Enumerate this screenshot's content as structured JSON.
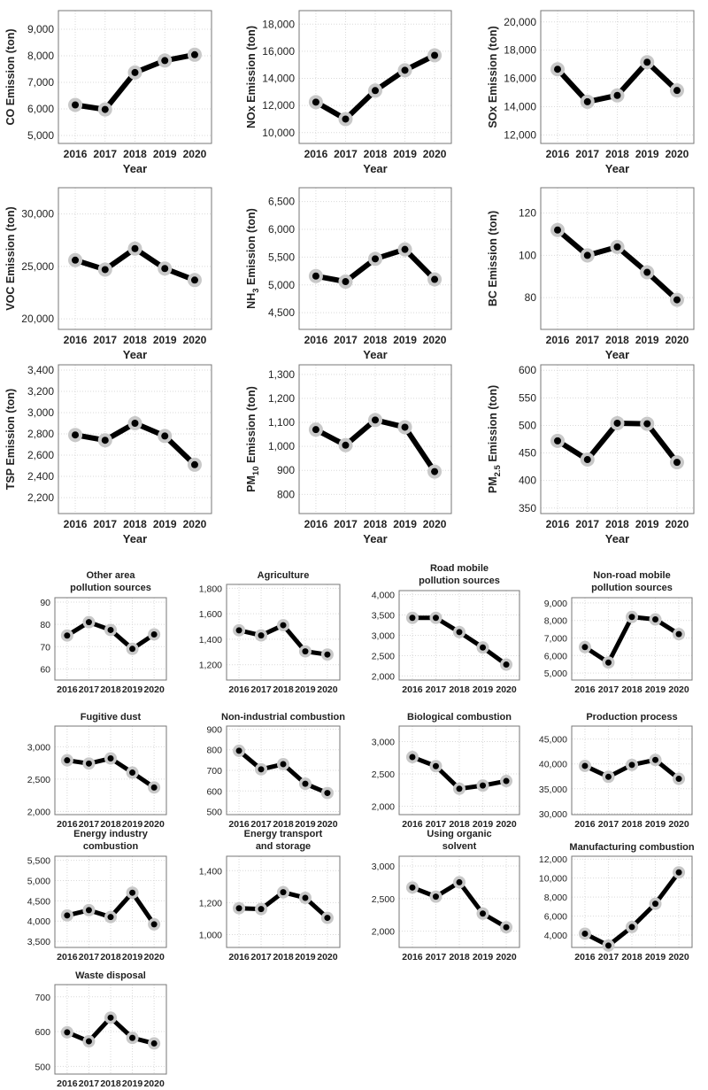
{
  "style": {
    "line_color": "#000000",
    "point_fill": "#000000",
    "halo_color": "#c8c8c8",
    "axis_color": "#777777",
    "grid_color": "#d9d9d9",
    "text_color": "#222222"
  },
  "chart_data": [
    {
      "type": "line",
      "group": "pollutant",
      "ylabel": "CO Emission (ton)",
      "xlabel": "Year",
      "categories": [
        "2016",
        "2017",
        "2018",
        "2019",
        "2020"
      ],
      "values": [
        6150,
        5980,
        7370,
        7820,
        8040
      ],
      "ylim": [
        4700,
        9700
      ],
      "yticks": [
        5000,
        6000,
        7000,
        8000,
        9000
      ],
      "ytick_labels": [
        "5,000",
        "6,000",
        "7,000",
        "8,000",
        "9,000"
      ]
    },
    {
      "type": "line",
      "group": "pollutant",
      "ylabel": "NOx Emission (ton)",
      "xlabel": "Year",
      "categories": [
        "2016",
        "2017",
        "2018",
        "2019",
        "2020"
      ],
      "values": [
        12250,
        11000,
        13100,
        14600,
        15700
      ],
      "ylim": [
        9200,
        19000
      ],
      "yticks": [
        10000,
        12000,
        14000,
        16000,
        18000
      ],
      "ytick_labels": [
        "10,000",
        "12,000",
        "14,000",
        "16,000",
        "18,000"
      ]
    },
    {
      "type": "line",
      "group": "pollutant",
      "ylabel": "SOx Emission (ton)",
      "xlabel": "Year",
      "categories": [
        "2016",
        "2017",
        "2018",
        "2019",
        "2020"
      ],
      "values": [
        16650,
        14350,
        14800,
        17150,
        15150
      ],
      "ylim": [
        11400,
        20800
      ],
      "yticks": [
        12000,
        14000,
        16000,
        18000,
        20000
      ],
      "ytick_labels": [
        "12,000",
        "14,000",
        "16,000",
        "18,000",
        "20,000"
      ]
    },
    {
      "type": "line",
      "group": "pollutant",
      "ylabel": "VOC Emission (ton)",
      "xlabel": "Year",
      "categories": [
        "2016",
        "2017",
        "2018",
        "2019",
        "2020"
      ],
      "values": [
        25600,
        24700,
        26700,
        24800,
        23700
      ],
      "ylim": [
        19000,
        32500
      ],
      "yticks": [
        20000,
        25000,
        30000
      ],
      "ytick_labels": [
        "20,000",
        "25,000",
        "30,000"
      ]
    },
    {
      "type": "line",
      "group": "pollutant",
      "ylabel_parts": [
        "NH",
        "3",
        " Emission (ton)"
      ],
      "xlabel": "Year",
      "categories": [
        "2016",
        "2017",
        "2018",
        "2019",
        "2020"
      ],
      "values": [
        5160,
        5060,
        5470,
        5640,
        5100
      ],
      "ylim": [
        4200,
        6750
      ],
      "yticks": [
        4500,
        5000,
        5500,
        6000,
        6500
      ],
      "ytick_labels": [
        "4,500",
        "5,000",
        "5,500",
        "6,000",
        "6,500"
      ]
    },
    {
      "type": "line",
      "group": "pollutant",
      "ylabel": "BC Emission (ton)",
      "xlabel": "Year",
      "categories": [
        "2016",
        "2017",
        "2018",
        "2019",
        "2020"
      ],
      "values": [
        112,
        100,
        104,
        92,
        79
      ],
      "ylim": [
        65,
        132
      ],
      "yticks": [
        80,
        100,
        120
      ],
      "ytick_labels": [
        "80",
        "100",
        "120"
      ]
    },
    {
      "type": "line",
      "group": "pollutant",
      "ylabel": "TSP Emission (ton)",
      "xlabel": "Year",
      "categories": [
        "2016",
        "2017",
        "2018",
        "2019",
        "2020"
      ],
      "values": [
        2790,
        2740,
        2900,
        2780,
        2510
      ],
      "ylim": [
        2050,
        3450
      ],
      "yticks": [
        2200,
        2400,
        2600,
        2800,
        3000,
        3200,
        3400
      ],
      "ytick_labels": [
        "2,200",
        "2,400",
        "2,600",
        "2,800",
        "3,000",
        "3,200",
        "3,400"
      ]
    },
    {
      "type": "line",
      "group": "pollutant",
      "ylabel_parts": [
        "PM",
        "10",
        " Emission (ton)"
      ],
      "xlabel": "Year",
      "categories": [
        "2016",
        "2017",
        "2018",
        "2019",
        "2020"
      ],
      "values": [
        1070,
        1005,
        1110,
        1080,
        895
      ],
      "ylim": [
        720,
        1340
      ],
      "yticks": [
        800,
        900,
        1000,
        1100,
        1200,
        1300
      ],
      "ytick_labels": [
        "800",
        "900",
        "1,000",
        "1,100",
        "1,200",
        "1,300"
      ]
    },
    {
      "type": "line",
      "group": "pollutant",
      "ylabel_parts": [
        "PM",
        "2.5",
        " Emission (ton)"
      ],
      "xlabel": "Year",
      "categories": [
        "2016",
        "2017",
        "2018",
        "2019",
        "2020"
      ],
      "values": [
        472,
        438,
        504,
        503,
        433
      ],
      "ylim": [
        340,
        610
      ],
      "yticks": [
        350,
        400,
        450,
        500,
        550,
        600
      ],
      "ytick_labels": [
        "350",
        "400",
        "450",
        "500",
        "550",
        "600"
      ]
    },
    {
      "type": "line",
      "group": "sector",
      "title_lines": [
        "Other area",
        "pollution sources"
      ],
      "categories": [
        "2016",
        "2017",
        "2018",
        "2019",
        "2020"
      ],
      "values": [
        75,
        81,
        77.5,
        69,
        75.5
      ],
      "ylim": [
        55,
        92
      ],
      "yticks": [
        60,
        70,
        80,
        90
      ],
      "ytick_labels": [
        "60",
        "70",
        "80",
        "90"
      ]
    },
    {
      "type": "line",
      "group": "sector",
      "title_lines": [
        "Agriculture"
      ],
      "categories": [
        "2016",
        "2017",
        "2018",
        "2019",
        "2020"
      ],
      "values": [
        1470,
        1430,
        1510,
        1305,
        1280
      ],
      "ylim": [
        1080,
        1830
      ],
      "yticks": [
        1200,
        1400,
        1600,
        1800
      ],
      "ytick_labels": [
        "1,200",
        "1,400",
        "1,600",
        "1,800"
      ]
    },
    {
      "type": "line",
      "group": "sector",
      "title_lines": [
        "Road mobile",
        "pollution sources"
      ],
      "categories": [
        "2016",
        "2017",
        "2018",
        "2019",
        "2020"
      ],
      "values": [
        3430,
        3430,
        3080,
        2700,
        2280
      ],
      "ylim": [
        1900,
        4100
      ],
      "yticks": [
        2000,
        2500,
        3000,
        3500,
        4000
      ],
      "ytick_labels": [
        "2,000",
        "2,500",
        "3,000",
        "3,500",
        "4,000"
      ]
    },
    {
      "type": "line",
      "group": "sector",
      "title_lines": [
        "Non-road mobile",
        "pollution sources"
      ],
      "categories": [
        "2016",
        "2017",
        "2018",
        "2019",
        "2020"
      ],
      "values": [
        6480,
        5600,
        8200,
        8060,
        7220
      ],
      "ylim": [
        4600,
        9300
      ],
      "yticks": [
        5000,
        6000,
        7000,
        8000,
        9000
      ],
      "ytick_labels": [
        "5,000",
        "6,000",
        "7,000",
        "8,000",
        "9,000"
      ]
    },
    {
      "type": "line",
      "group": "sector",
      "title_lines": [
        "Fugitive dust"
      ],
      "categories": [
        "2016",
        "2017",
        "2018",
        "2019",
        "2020"
      ],
      "values": [
        2790,
        2740,
        2820,
        2600,
        2370
      ],
      "ylim": [
        1950,
        3320
      ],
      "yticks": [
        2000,
        2500,
        3000
      ],
      "ytick_labels": [
        "2,000",
        "2,500",
        "3,000"
      ]
    },
    {
      "type": "line",
      "group": "sector",
      "title_lines": [
        "Non-industrial combustion"
      ],
      "categories": [
        "2016",
        "2017",
        "2018",
        "2019",
        "2020"
      ],
      "values": [
        795,
        705,
        730,
        635,
        590
      ],
      "ylim": [
        485,
        915
      ],
      "yticks": [
        500,
        600,
        700,
        800,
        900
      ],
      "ytick_labels": [
        "500",
        "600",
        "700",
        "800",
        "900"
      ]
    },
    {
      "type": "line",
      "group": "sector",
      "title_lines": [
        "Biological combustion"
      ],
      "categories": [
        "2016",
        "2017",
        "2018",
        "2019",
        "2020"
      ],
      "values": [
        2760,
        2620,
        2270,
        2320,
        2390
      ],
      "ylim": [
        1870,
        3240
      ],
      "yticks": [
        2000,
        2500,
        3000
      ],
      "ytick_labels": [
        "2,000",
        "2,500",
        "3,000"
      ]
    },
    {
      "type": "line",
      "group": "sector",
      "title_lines": [
        "Production process"
      ],
      "categories": [
        "2016",
        "2017",
        "2018",
        "2019",
        "2020"
      ],
      "values": [
        39600,
        37400,
        39800,
        40800,
        37000
      ],
      "ylim": [
        29800,
        47600
      ],
      "yticks": [
        30000,
        35000,
        40000,
        45000
      ],
      "ytick_labels": [
        "30,000",
        "35,000",
        "40,000",
        "45,000"
      ]
    },
    {
      "type": "line",
      "group": "sector",
      "title_lines": [
        "Energy industry",
        "combustion"
      ],
      "categories": [
        "2016",
        "2017",
        "2018",
        "2019",
        "2020"
      ],
      "values": [
        4140,
        4270,
        4100,
        4700,
        3920
      ],
      "ylim": [
        3350,
        5600
      ],
      "yticks": [
        3500,
        4000,
        4500,
        5000,
        5500
      ],
      "ytick_labels": [
        "3,500",
        "4,000",
        "4,500",
        "5,000",
        "5,500"
      ]
    },
    {
      "type": "line",
      "group": "sector",
      "title_lines": [
        "Energy transport",
        "and storage"
      ],
      "categories": [
        "2016",
        "2017",
        "2018",
        "2019",
        "2020"
      ],
      "values": [
        1165,
        1160,
        1265,
        1230,
        1105
      ],
      "ylim": [
        920,
        1490
      ],
      "yticks": [
        1000,
        1200,
        1400
      ],
      "ytick_labels": [
        "1,000",
        "1,200",
        "1,400"
      ]
    },
    {
      "type": "line",
      "group": "sector",
      "title_lines": [
        "Using organic",
        "solvent"
      ],
      "categories": [
        "2016",
        "2017",
        "2018",
        "2019",
        "2020"
      ],
      "values": [
        2670,
        2530,
        2750,
        2270,
        2060
      ],
      "ylim": [
        1750,
        3150
      ],
      "yticks": [
        2000,
        2500,
        3000
      ],
      "ytick_labels": [
        "2,000",
        "2,500",
        "3,000"
      ]
    },
    {
      "type": "line",
      "group": "sector",
      "title_lines": [
        "Manufacturing combustion"
      ],
      "categories": [
        "2016",
        "2017",
        "2018",
        "2019",
        "2020"
      ],
      "values": [
        4150,
        2900,
        4850,
        7300,
        10600
      ],
      "ylim": [
        2700,
        12300
      ],
      "yticks": [
        4000,
        6000,
        8000,
        10000,
        12000
      ],
      "ytick_labels": [
        "4,000",
        "6,000",
        "8,000",
        "10,000",
        "12,000"
      ]
    },
    {
      "type": "line",
      "group": "sector",
      "title_lines": [
        "Waste disposal"
      ],
      "categories": [
        "2016",
        "2017",
        "2018",
        "2019",
        "2020"
      ],
      "values": [
        598,
        572,
        640,
        582,
        566
      ],
      "ylim": [
        478,
        735
      ],
      "yticks": [
        500,
        600,
        700
      ],
      "ytick_labels": [
        "500",
        "600",
        "700"
      ]
    }
  ]
}
